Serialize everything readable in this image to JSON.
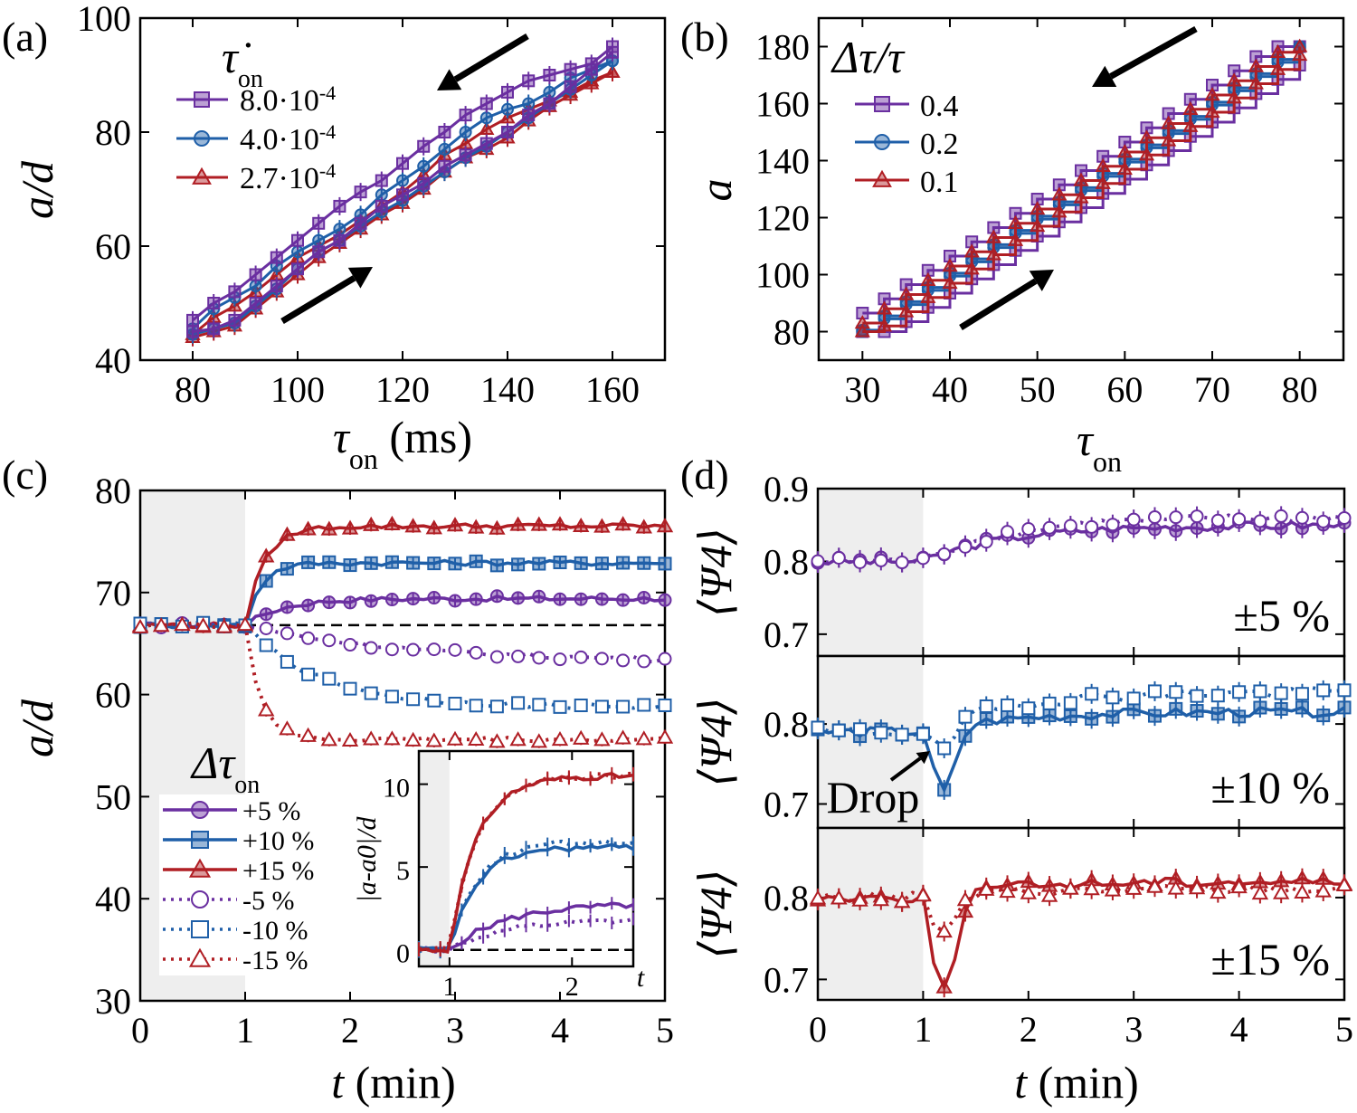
{
  "colors": {
    "purple": "#6a2fa0",
    "blue": "#1f5fa8",
    "red": "#b01e24",
    "shade": "#eeeeee"
  },
  "chart_data": [
    {
      "panel": "(a)",
      "type": "line",
      "xlabel_sym": "τ",
      "xlabel_sub": "on",
      "xlabel_unit": " (ms)",
      "ylabel": "a/d",
      "xlim": [
        70,
        170
      ],
      "ylim": [
        40,
        100
      ],
      "xticks": [
        80,
        100,
        120,
        140,
        160
      ],
      "yticks": [
        40,
        60,
        80,
        100
      ],
      "legend_title_sym": "τ̇",
      "legend_title_sub": "on",
      "series": [
        {
          "name": "8.0·10",
          "exp": "-4",
          "color": "purple",
          "marker": "square",
          "up_x": [
            80,
            84,
            88,
            92,
            96,
            100,
            104,
            108,
            112,
            116,
            120,
            124,
            128,
            132,
            136,
            140,
            144,
            148,
            152,
            156,
            160
          ],
          "up_y": [
            45,
            45.5,
            47,
            50,
            53,
            56,
            59,
            61,
            64,
            67,
            69,
            71,
            74,
            76,
            78,
            80,
            83,
            85,
            88,
            91,
            94
          ],
          "down_y": [
            47,
            50,
            52,
            55,
            58,
            61,
            64,
            67,
            69.5,
            71.5,
            74.5,
            77.5,
            80,
            83,
            85,
            87,
            89,
            90,
            91,
            92,
            95
          ]
        },
        {
          "name": "4.0·10",
          "exp": "-4",
          "color": "blue",
          "marker": "circle",
          "up_x": [
            80,
            84,
            88,
            92,
            96,
            100,
            104,
            108,
            112,
            116,
            120,
            124,
            128,
            132,
            136,
            140,
            144,
            148,
            152,
            156,
            160
          ],
          "up_y": [
            44.5,
            45.5,
            46.5,
            49.5,
            52.5,
            56,
            59,
            61,
            63.5,
            66,
            68,
            70.5,
            73,
            75.5,
            77.5,
            80,
            82.5,
            85,
            87.5,
            90,
            92.5
          ],
          "down_y": [
            45.5,
            49,
            51,
            53,
            56.5,
            59,
            61,
            63,
            65.5,
            69,
            71.5,
            74,
            77,
            80,
            82.5,
            84,
            85,
            87,
            89.5,
            91,
            92.5
          ]
        },
        {
          "name": "2.7·10",
          "exp": "-4",
          "color": "red",
          "marker": "triangle",
          "up_x": [
            80,
            84,
            88,
            92,
            96,
            100,
            104,
            108,
            112,
            116,
            120,
            124,
            128,
            132,
            136,
            140,
            144,
            148,
            152,
            156,
            160
          ],
          "up_y": [
            44,
            45,
            46,
            49,
            52,
            55,
            58,
            60.5,
            63,
            65.5,
            67.5,
            70,
            73,
            75.5,
            77,
            79,
            82,
            84.5,
            86.5,
            88.5,
            90.5
          ],
          "down_y": [
            44.5,
            47.5,
            49.5,
            52,
            55,
            58,
            60,
            62,
            64.5,
            67,
            69.5,
            72.5,
            76,
            78,
            80.5,
            82.5,
            84,
            85.5,
            87,
            89,
            90.5
          ]
        }
      ]
    },
    {
      "panel": "(b)",
      "type": "line",
      "xlabel_sym": "τ",
      "xlabel_sub": "on",
      "xlabel_unit": "",
      "ylabel": "a",
      "xlim": [
        25,
        85
      ],
      "ylim": [
        70,
        190
      ],
      "xticks": [
        30,
        40,
        50,
        60,
        70,
        80
      ],
      "yticks": [
        80,
        100,
        120,
        140,
        160,
        180
      ],
      "legend_title": "Δτ/τ",
      "series": [
        {
          "name": "0.4",
          "color": "purple",
          "marker": "square",
          "offset": 3.5
        },
        {
          "name": "0.2",
          "color": "blue",
          "marker": "circle",
          "offset": -3.5
        },
        {
          "name": "0.1",
          "color": "red",
          "marker": "triangle",
          "offset": 0
        }
      ],
      "range": {
        "x0": 30,
        "x1": 80,
        "y0": 80,
        "y1": 180
      }
    },
    {
      "panel": "(c)",
      "type": "line",
      "xlabel_sym": "t",
      "xlabel_unit": " (min)",
      "ylabel": "a/d",
      "xlim": [
        0,
        5
      ],
      "ylim": [
        30,
        80
      ],
      "xticks": [
        0,
        1,
        2,
        3,
        4,
        5
      ],
      "yticks": [
        30,
        40,
        50,
        60,
        70,
        80
      ],
      "shade_until": 1,
      "reference_line": 66.8,
      "legend_title_sym": "Δτ",
      "legend_title_sub": "on",
      "series": [
        {
          "name": "+5 %",
          "color": "purple",
          "marker": "circle",
          "style": "solid",
          "final": 69.4,
          "tau": 0.35
        },
        {
          "name": "+10 %",
          "color": "blue",
          "marker": "square",
          "style": "solid",
          "final": 72.9,
          "tau": 0.15
        },
        {
          "name": "+15 %",
          "color": "red",
          "marker": "triangle",
          "style": "solid",
          "final": 76.5,
          "tau": 0.18
        },
        {
          "name": "-5 %",
          "color": "purple",
          "marker": "circle",
          "style": "dotted",
          "final": 63.2,
          "tau": 1.5
        },
        {
          "name": "-10 %",
          "color": "blue",
          "marker": "square",
          "style": "dotted",
          "final": 58.8,
          "tau": 0.7
        },
        {
          "name": "-15 %",
          "color": "red",
          "marker": "triangle",
          "style": "dotted",
          "final": 55.6,
          "tau": 0.15
        }
      ],
      "inset": {
        "ylabel": "|a-a0|/d",
        "xlabel": "t",
        "xlim": [
          0.75,
          2.5
        ],
        "ylim": [
          -1,
          12
        ],
        "xticks": [
          1,
          2
        ],
        "yticks": [
          0,
          5,
          10
        ]
      }
    },
    {
      "panel": "(d)",
      "type": "line",
      "xlabel_sym": "t",
      "xlabel_unit": " (min)",
      "ylabel": "⟨Ψ4⟩",
      "xlim": [
        0,
        5
      ],
      "xticks": [
        0,
        1,
        2,
        3,
        4,
        5
      ],
      "shade_until": 1,
      "subplots": [
        {
          "label": "±5 %",
          "color": "purple",
          "ylim": [
            0.67,
            0.9
          ],
          "yticks": [
            0.7,
            0.8,
            0.9
          ],
          "base": 0.8,
          "final_solid": 0.85,
          "final_dotted": 0.86,
          "dip": 0
        },
        {
          "label": "±10 %",
          "color": "blue",
          "ylim": [
            0.67,
            0.885
          ],
          "yticks": [
            0.7,
            0.8
          ],
          "base": 0.79,
          "final_solid": 0.815,
          "final_dotted": 0.84,
          "dip": 0.08,
          "annotation": "Drop"
        },
        {
          "label": "±15 %",
          "color": "red",
          "ylim": [
            0.675,
            0.885
          ],
          "yticks": [
            0.7,
            0.8
          ],
          "base": 0.8,
          "final_solid": 0.82,
          "final_dotted": 0.81,
          "dip": 0.12
        }
      ]
    }
  ]
}
